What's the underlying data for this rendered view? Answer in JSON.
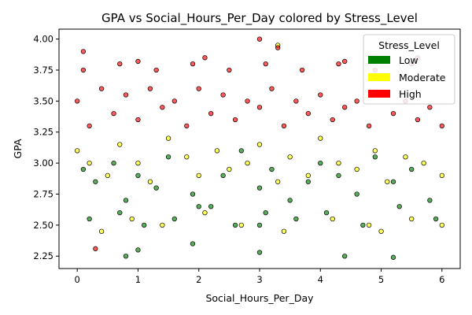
{
  "chart_data": {
    "type": "scatter",
    "title": "GPA vs Social_Hours_Per_Day colored by Stress_Level",
    "xlabel": "Social_Hours_Per_Day",
    "ylabel": "GPA",
    "xlim": [
      -0.3,
      6.3
    ],
    "ylim": [
      2.15,
      4.08
    ],
    "xticks": [
      "0",
      "1",
      "2",
      "3",
      "4",
      "5",
      "6"
    ],
    "xtick_values": [
      0,
      1,
      2,
      3,
      4,
      5,
      6
    ],
    "yticks": [
      "2.25",
      "2.50",
      "2.75",
      "3.00",
      "3.25",
      "3.50",
      "3.75",
      "4.00"
    ],
    "ytick_values": [
      2.25,
      2.5,
      2.75,
      3.0,
      3.25,
      3.5,
      3.75,
      4.0
    ],
    "grid": false,
    "legend": {
      "title": "Stress_Level",
      "placement": "top-right",
      "entries": [
        {
          "label": "Low",
          "color": "#008000"
        },
        {
          "label": "Moderate",
          "color": "#ffff00"
        },
        {
          "label": "High",
          "color": "#ff0000"
        }
      ]
    },
    "series": [
      {
        "name": "Low",
        "color": "#008000",
        "x": [
          0.1,
          0.3,
          0.6,
          0.8,
          1.0,
          1.3,
          1.5,
          1.9,
          2.2,
          2.4,
          2.7,
          3.0,
          3.2,
          3.5,
          3.8,
          4.0,
          4.3,
          4.6,
          4.9,
          5.2,
          5.5,
          5.8,
          0.2,
          0.7,
          1.1,
          1.6,
          2.0,
          2.6,
          3.1,
          3.6,
          4.1,
          4.7,
          5.3,
          5.9,
          1.9,
          3.0,
          4.4,
          5.2,
          0.8,
          1.0,
          3.0
        ],
        "y": [
          2.95,
          2.85,
          3.0,
          2.7,
          2.9,
          2.8,
          3.05,
          2.75,
          2.65,
          2.9,
          3.1,
          2.8,
          2.95,
          2.7,
          2.85,
          3.0,
          2.9,
          2.75,
          3.05,
          2.85,
          2.95,
          2.7,
          2.55,
          2.6,
          2.5,
          2.55,
          2.65,
          2.5,
          2.6,
          2.55,
          2.6,
          2.5,
          2.65,
          2.55,
          2.35,
          2.28,
          2.25,
          2.24,
          2.25,
          2.3,
          2.5
        ]
      },
      {
        "name": "Moderate",
        "color": "#ffff00",
        "x": [
          0.0,
          0.2,
          0.5,
          0.7,
          1.0,
          1.2,
          1.5,
          1.8,
          2.0,
          2.3,
          2.5,
          2.8,
          3.0,
          3.3,
          3.5,
          3.8,
          4.0,
          4.3,
          4.6,
          4.9,
          5.1,
          5.4,
          5.7,
          6.0,
          0.4,
          0.9,
          1.4,
          2.1,
          2.7,
          3.4,
          4.2,
          4.8,
          5.5,
          6.0,
          3.3,
          5.0
        ],
        "y": [
          3.1,
          3.0,
          2.9,
          3.15,
          3.0,
          2.85,
          3.2,
          3.05,
          2.9,
          3.1,
          2.95,
          3.0,
          3.15,
          2.85,
          3.05,
          2.9,
          3.2,
          3.0,
          2.95,
          3.1,
          2.85,
          3.05,
          3.0,
          2.9,
          2.45,
          2.55,
          2.5,
          2.6,
          2.5,
          2.45,
          2.55,
          2.5,
          2.55,
          2.5,
          3.95,
          2.45
        ]
      },
      {
        "name": "High",
        "color": "#ff0000",
        "x": [
          0.0,
          0.2,
          0.4,
          0.6,
          0.8,
          1.0,
          1.2,
          1.4,
          1.6,
          1.8,
          2.0,
          2.2,
          2.4,
          2.6,
          2.8,
          3.0,
          3.2,
          3.4,
          3.6,
          3.8,
          4.0,
          4.2,
          4.4,
          4.6,
          4.8,
          5.0,
          5.2,
          5.4,
          5.6,
          5.8,
          6.0,
          0.1,
          0.7,
          1.3,
          1.9,
          2.5,
          3.1,
          3.7,
          4.3,
          4.9,
          5.5,
          0.1,
          1.0,
          2.1,
          3.0,
          3.3,
          4.4,
          5.6,
          0.3
        ],
        "y": [
          3.5,
          3.3,
          3.6,
          3.4,
          3.55,
          3.35,
          3.6,
          3.45,
          3.5,
          3.3,
          3.6,
          3.4,
          3.55,
          3.35,
          3.5,
          3.45,
          3.6,
          3.3,
          3.5,
          3.4,
          3.55,
          3.35,
          3.45,
          3.5,
          3.3,
          3.55,
          3.4,
          3.5,
          3.35,
          3.45,
          3.3,
          3.75,
          3.8,
          3.75,
          3.8,
          3.75,
          3.8,
          3.75,
          3.8,
          3.75,
          3.8,
          3.9,
          3.82,
          3.85,
          4.0,
          3.93,
          3.82,
          3.85,
          2.31
        ]
      }
    ]
  }
}
